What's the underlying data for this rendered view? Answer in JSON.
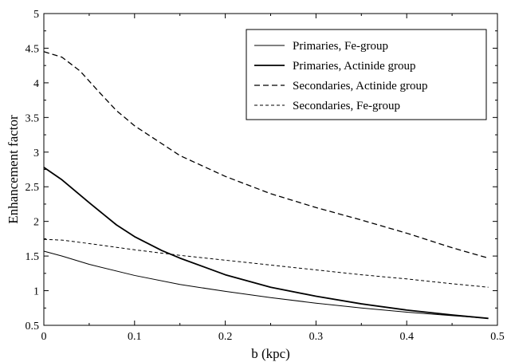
{
  "chart_data": {
    "type": "line",
    "title": "",
    "xlabel": "b (kpc)",
    "ylabel": "Enhancement factor",
    "xlim": [
      0,
      0.5
    ],
    "ylim": [
      0.5,
      5
    ],
    "xticks": [
      0,
      0.1,
      0.2,
      0.3,
      0.4,
      0.5
    ],
    "xtick_labels": [
      "0",
      "0.1",
      "0.2",
      "0.3",
      "0.4",
      "0.5"
    ],
    "yticks": [
      0.5,
      1,
      1.5,
      2,
      2.5,
      3,
      3.5,
      4,
      4.5,
      5
    ],
    "ytick_labels": [
      "0.5",
      "1",
      "1.5",
      "2",
      "2.5",
      "3",
      "3.5",
      "4",
      "4.5",
      "5"
    ],
    "grid": false,
    "legend_position": "top-right",
    "series": [
      {
        "name": "Primaries, Fe-group",
        "style": "solid-thin",
        "x": [
          0,
          0.02,
          0.05,
          0.1,
          0.15,
          0.2,
          0.25,
          0.3,
          0.35,
          0.4,
          0.45,
          0.49
        ],
        "y": [
          1.57,
          1.5,
          1.38,
          1.22,
          1.09,
          0.99,
          0.9,
          0.82,
          0.75,
          0.69,
          0.64,
          0.6
        ]
      },
      {
        "name": "Primaries, Actinide group",
        "style": "solid-thick",
        "x": [
          0,
          0.02,
          0.05,
          0.08,
          0.1,
          0.13,
          0.15,
          0.2,
          0.25,
          0.3,
          0.35,
          0.4,
          0.45,
          0.49
        ],
        "y": [
          2.78,
          2.6,
          2.27,
          1.95,
          1.78,
          1.58,
          1.47,
          1.23,
          1.05,
          0.92,
          0.81,
          0.72,
          0.65,
          0.6
        ]
      },
      {
        "name": "Secondaries, Actinide group",
        "style": "long-dash",
        "x": [
          0,
          0.02,
          0.04,
          0.06,
          0.08,
          0.1,
          0.15,
          0.2,
          0.25,
          0.3,
          0.35,
          0.4,
          0.45,
          0.49
        ],
        "y": [
          4.45,
          4.37,
          4.17,
          3.88,
          3.6,
          3.38,
          2.95,
          2.65,
          2.4,
          2.2,
          2.02,
          1.83,
          1.62,
          1.47
        ]
      },
      {
        "name": "Secondaries, Fe-group",
        "style": "short-dash",
        "x": [
          0,
          0.02,
          0.05,
          0.1,
          0.15,
          0.2,
          0.25,
          0.3,
          0.35,
          0.4,
          0.45,
          0.49
        ],
        "y": [
          1.74,
          1.73,
          1.68,
          1.59,
          1.51,
          1.44,
          1.37,
          1.3,
          1.23,
          1.17,
          1.1,
          1.05
        ]
      }
    ]
  },
  "colors": {
    "line": "#000000",
    "background": "#ffffff"
  }
}
